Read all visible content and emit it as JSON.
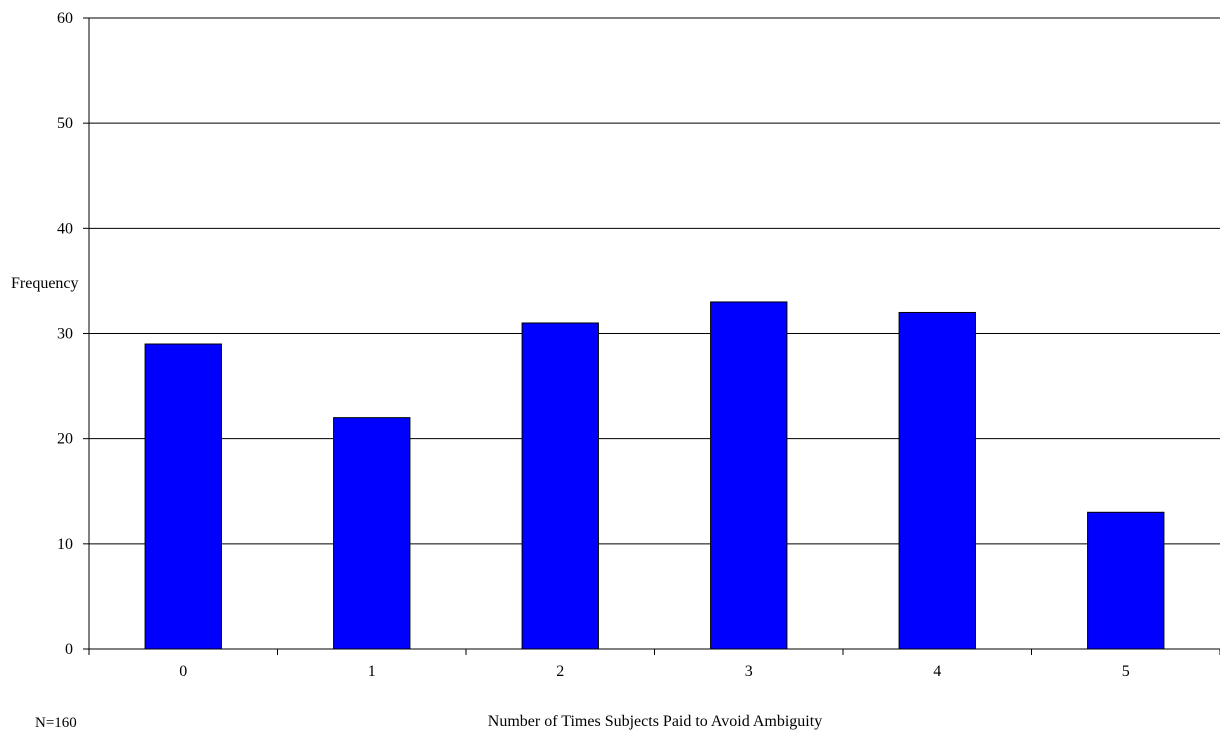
{
  "chart_data": {
    "type": "bar",
    "categories": [
      "0",
      "1",
      "2",
      "3",
      "4",
      "5"
    ],
    "values": [
      29,
      22,
      31,
      33,
      32,
      13
    ],
    "title": "",
    "xlabel": "Number of Times Subjects Paid to Avoid Ambiguity",
    "ylabel": "Frequency",
    "ylim": [
      0,
      60
    ],
    "yticks": [
      0,
      10,
      20,
      30,
      40,
      50,
      60
    ],
    "grid": true,
    "legend": "none",
    "bar_color": "#0000FF",
    "bar_edge_color": "#000000"
  },
  "note": "N=160"
}
